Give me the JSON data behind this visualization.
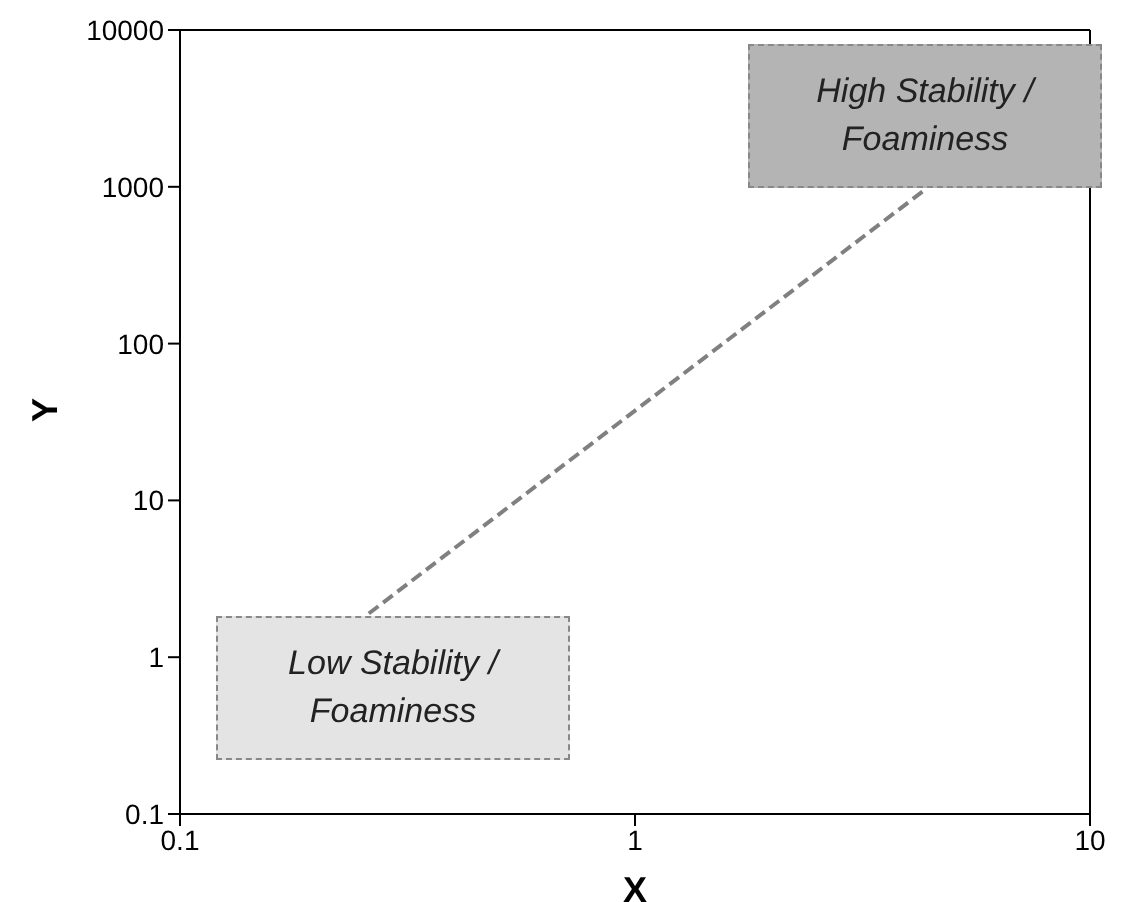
{
  "chart_data": {
    "type": "line",
    "xlabel": "X",
    "ylabel": "Y",
    "log": "xy",
    "xlim": [
      0.1,
      10
    ],
    "xticks": [
      0.1,
      1,
      10
    ],
    "ylim": [
      0.1,
      10000
    ],
    "yticks": [
      0.1,
      1,
      10,
      100,
      1000,
      10000
    ],
    "marker": "none",
    "line_style": "dashed",
    "series": [
      {
        "color": "#808080",
        "x": [
          0.26,
          4.3
        ],
        "values": [
          1.9,
          940
        ]
      }
    ],
    "annotations": [
      "Low Stability / Foaminess",
      "High Stability / Foaminess"
    ]
  }
}
